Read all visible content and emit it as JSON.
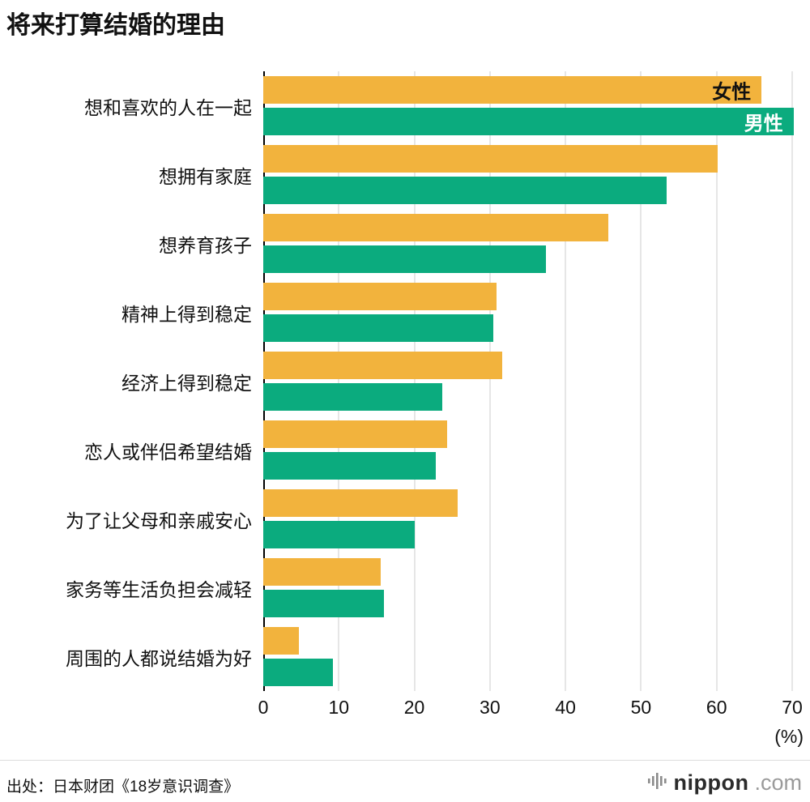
{
  "title": "将来打算结婚的理由",
  "axis_unit": "(%)",
  "source": "出处：日本财团《18岁意识调查》",
  "logo": {
    "name": "nippon",
    "suffix": ".com"
  },
  "chart_data": {
    "type": "bar",
    "orientation": "horizontal",
    "title": "将来打算结婚的理由",
    "xlabel": "(%)",
    "ylabel": "",
    "xlim": [
      0,
      70
    ],
    "xticks": [
      0,
      10,
      20,
      30,
      40,
      50,
      60,
      70
    ],
    "grid": true,
    "legend_position": "inside-first-bars",
    "categories": [
      "想和喜欢的人在一起",
      "想拥有家庭",
      "想养育孩子",
      "精神上得到稳定",
      "经济上得到稳定",
      "恋人或伴侣希望结婚",
      "为了让父母和亲戚安心",
      "家务等生活负担会减轻",
      "周围的人都说结婚为好"
    ],
    "series": [
      {
        "name": "女性",
        "color": "#F2B33D",
        "values": [
          63.8,
          58.2,
          44.2,
          29.9,
          30.6,
          23.5,
          24.9,
          15.0,
          4.6
        ]
      },
      {
        "name": "男性",
        "color": "#0BAB7E",
        "values": [
          67.9,
          51.6,
          36.2,
          29.4,
          22.9,
          22.1,
          19.4,
          15.4,
          8.9
        ]
      }
    ]
  }
}
